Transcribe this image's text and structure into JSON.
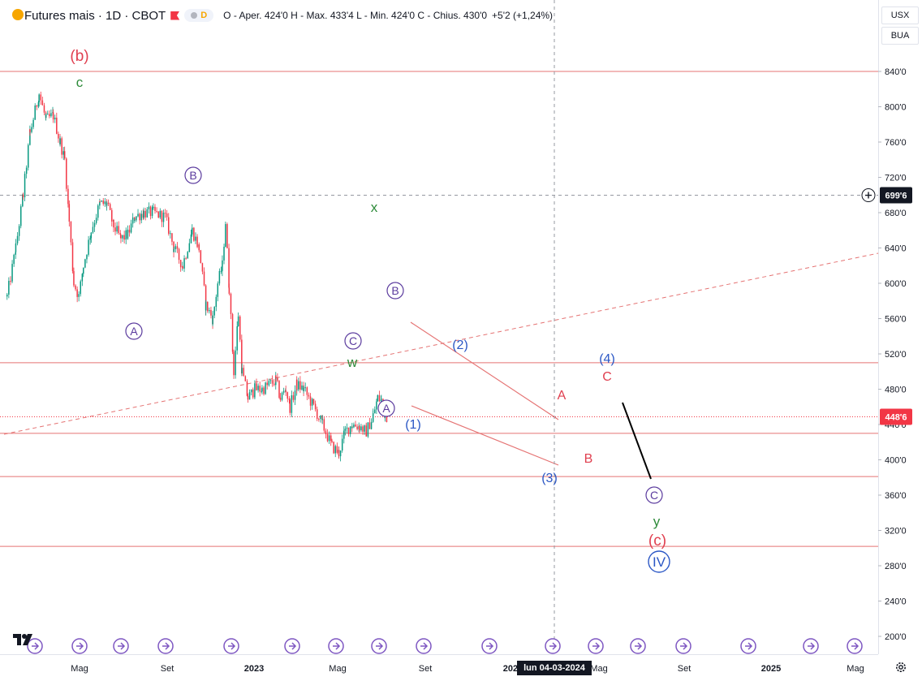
{
  "header": {
    "symbol_title": "Futures mais · 1D · CBOT",
    "pill_label": "D",
    "ohlc_text": "O - Aper. 424'0  H - Max. 433'4  L - Min. 424'0  C - Chius. 430'0",
    "change_text": "+5'2 (+1,24%)"
  },
  "controls": {
    "currency": "USX",
    "unit": "BUA"
  },
  "colors": {
    "up": "#089981",
    "down": "#f23645",
    "axis_text": "#131722",
    "grid_line": "#e0e3eb",
    "hline": "#e57373",
    "trend": "#e57373",
    "wave_red": "#e04050",
    "wave_green": "#2e8b3a",
    "wave_blue": "#2b57c5",
    "wave_purple": "#5b3b9e"
  },
  "crosshair": {
    "date_label": "lun 04-03-2024",
    "price_label": "699'6"
  },
  "last_price_label": "448'6",
  "chart_data": {
    "type": "candlestick",
    "x_tick_labels": [
      "Mag",
      "Set",
      "2023",
      "Mag",
      "Set",
      "2024",
      "Mag",
      "Set",
      "2025",
      "Mag"
    ],
    "y_tick_labels": [
      "840'0",
      "800'0",
      "760'0",
      "720'0",
      "680'0",
      "640'0",
      "600'0",
      "560'0",
      "520'0",
      "480'0",
      "440'0",
      "400'0",
      "360'0",
      "320'0",
      "280'0",
      "240'0",
      "200'0"
    ],
    "y_ticks": [
      840,
      800,
      760,
      720,
      680,
      640,
      600,
      560,
      520,
      480,
      440,
      400,
      360,
      320,
      280,
      240,
      200
    ],
    "ylim": [
      190,
      890
    ],
    "x_range_months": [
      "2022-03",
      "2025-06"
    ],
    "horizontal_levels": [
      840,
      510,
      430,
      381,
      302
    ],
    "last_price": 448.75,
    "crosshair_price": 699.75,
    "crosshair_date": "2024-03-04",
    "price_path": [
      [
        "2022-03-01",
        585
      ],
      [
        "2022-03-20",
        640
      ],
      [
        "2022-04-05",
        700
      ],
      [
        "2022-04-20",
        770
      ],
      [
        "2022-05-10",
        815
      ],
      [
        "2022-05-25",
        785
      ],
      [
        "2022-06-10",
        790
      ],
      [
        "2022-06-25",
        760
      ],
      [
        "2022-07-05",
        740
      ],
      [
        "2022-07-15",
        670
      ],
      [
        "2022-07-25",
        600
      ],
      [
        "2022-08-05",
        585
      ],
      [
        "2022-08-15",
        620
      ],
      [
        "2022-09-01",
        660
      ],
      [
        "2022-09-20",
        690
      ],
      [
        "2022-10-05",
        690
      ],
      [
        "2022-10-20",
        665
      ],
      [
        "2022-11-05",
        650
      ],
      [
        "2022-11-20",
        655
      ],
      [
        "2022-12-05",
        675
      ],
      [
        "2022-12-25",
        680
      ],
      [
        "2023-01-15",
        680
      ],
      [
        "2023-02-10",
        675
      ],
      [
        "2023-03-01",
        640
      ],
      [
        "2023-03-20",
        620
      ],
      [
        "2023-04-10",
        660
      ],
      [
        "2023-04-25",
        640
      ],
      [
        "2023-05-10",
        575
      ],
      [
        "2023-05-25",
        560
      ],
      [
        "2023-06-05",
        600
      ],
      [
        "2023-06-15",
        620
      ],
      [
        "2023-06-22",
        670
      ],
      [
        "2023-06-30",
        595
      ],
      [
        "2023-07-10",
        500
      ],
      [
        "2023-07-20",
        565
      ],
      [
        "2023-07-28",
        500
      ],
      [
        "2023-08-10",
        470
      ],
      [
        "2023-08-25",
        480
      ],
      [
        "2023-09-10",
        480
      ],
      [
        "2023-09-25",
        485
      ],
      [
        "2023-10-10",
        490
      ],
      [
        "2023-10-20",
        470
      ],
      [
        "2023-11-01",
        480
      ],
      [
        "2023-11-10",
        460
      ],
      [
        "2023-11-25",
        485
      ],
      [
        "2023-12-10",
        480
      ],
      [
        "2024-01-01",
        460
      ],
      [
        "2024-01-20",
        440
      ],
      [
        "2024-02-10",
        415
      ],
      [
        "2024-02-25",
        408
      ],
      [
        "2024-03-10",
        432
      ],
      [
        "2024-03-25",
        440
      ],
      [
        "2024-04-10",
        438
      ],
      [
        "2024-04-25",
        432
      ],
      [
        "2024-05-10",
        450
      ],
      [
        "2024-05-20",
        470
      ],
      [
        "2024-05-28",
        467
      ],
      [
        "2024-06-05",
        452
      ],
      [
        "2024-06-10",
        449
      ]
    ],
    "projection": [
      [
        "2024-06-15",
        465
      ],
      [
        "2024-08-05",
        382
      ]
    ],
    "wave_labels": [
      {
        "text": "(b)",
        "style": "red"
      },
      {
        "text": "c",
        "style": "green"
      },
      {
        "text": "B",
        "style": "purple-circle"
      },
      {
        "text": "A",
        "style": "purple-circle"
      },
      {
        "text": "x",
        "style": "green"
      },
      {
        "text": "B",
        "style": "purple-circle"
      },
      {
        "text": "C",
        "style": "purple-circle"
      },
      {
        "text": "w",
        "style": "green"
      },
      {
        "text": "A",
        "style": "purple-circle"
      },
      {
        "text": "(1)",
        "style": "blue"
      },
      {
        "text": "(2)",
        "style": "blue"
      },
      {
        "text": "(3)",
        "style": "blue"
      },
      {
        "text": "A",
        "style": "red-letter"
      },
      {
        "text": "B",
        "style": "red-letter"
      },
      {
        "text": "(4)",
        "style": "blue"
      },
      {
        "text": "C",
        "style": "red-letter"
      },
      {
        "text": "C",
        "style": "purple-circle"
      },
      {
        "text": "y",
        "style": "green"
      },
      {
        "text": "(c)",
        "style": "red"
      },
      {
        "text": "IV",
        "style": "blue-circle"
      }
    ]
  }
}
